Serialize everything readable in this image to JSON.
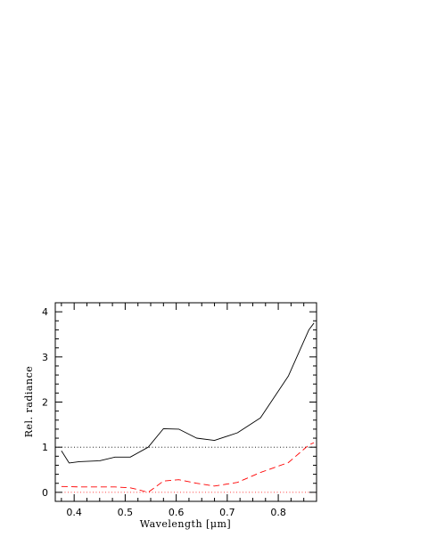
{
  "chart_data": {
    "type": "line",
    "xlabel": "Wavelength [μm]",
    "ylabel": "Rel. radiance",
    "xlim": [
      0.363,
      0.875
    ],
    "ylim": [
      -0.2,
      4.2
    ],
    "xticks": [
      0.4,
      0.5,
      0.6,
      0.7,
      0.8
    ],
    "xtick_labels": [
      "0.4",
      "0.5",
      "0.6",
      "0.7",
      "0.8"
    ],
    "yticks": [
      0,
      1,
      2,
      3,
      4
    ],
    "ytick_labels": [
      "0",
      "1",
      "2",
      "3",
      "4"
    ],
    "grid": false,
    "reference_lines": [
      {
        "y": 1,
        "style": "dotted",
        "color": "#000000"
      },
      {
        "y": 0,
        "style": "dotted",
        "color": "#ff0000"
      }
    ],
    "series": [
      {
        "style": "solid",
        "color": "#000000",
        "x": [
          0.375,
          0.39,
          0.41,
          0.45,
          0.48,
          0.51,
          0.545,
          0.575,
          0.605,
          0.64,
          0.675,
          0.72,
          0.765,
          0.82,
          0.86,
          0.87
        ],
        "y": [
          0.92,
          0.65,
          0.68,
          0.7,
          0.78,
          0.78,
          1.0,
          1.41,
          1.4,
          1.2,
          1.15,
          1.32,
          1.65,
          2.58,
          3.6,
          3.75
        ]
      },
      {
        "style": "dashed",
        "color": "#ff0000",
        "x": [
          0.375,
          0.41,
          0.45,
          0.48,
          0.51,
          0.525,
          0.545,
          0.575,
          0.605,
          0.64,
          0.675,
          0.72,
          0.765,
          0.82,
          0.86,
          0.87
        ],
        "y": [
          0.13,
          0.12,
          0.12,
          0.12,
          0.1,
          0.06,
          0.0,
          0.25,
          0.28,
          0.2,
          0.14,
          0.22,
          0.44,
          0.66,
          1.05,
          1.1
        ]
      }
    ]
  }
}
